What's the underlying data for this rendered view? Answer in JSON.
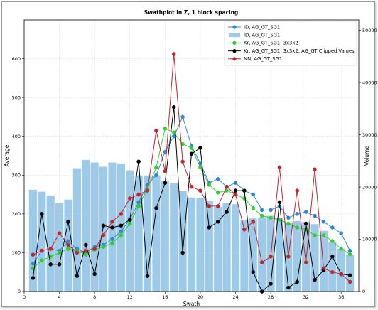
{
  "chart_data": {
    "type": "bar+line",
    "title": "Swathplot in Z, 1 block spacing",
    "xlabel": "Swath",
    "ylabel_left": "Average",
    "ylabel_right": "Volume",
    "xlim": [
      0,
      38
    ],
    "ylim_left": [
      0,
      700
    ],
    "ylim_right": [
      0,
      52000
    ],
    "xticks": [
      0,
      4,
      8,
      12,
      16,
      20,
      24,
      28,
      32,
      36
    ],
    "yticks_left": [
      0,
      100,
      200,
      300,
      400,
      500,
      600
    ],
    "yticks_right": [
      0,
      10000,
      20000,
      30000,
      40000,
      50000
    ],
    "grid": true,
    "legend_position": "top-right",
    "x": [
      1,
      2,
      3,
      4,
      5,
      6,
      7,
      8,
      9,
      10,
      11,
      12,
      13,
      14,
      15,
      16,
      17,
      18,
      19,
      20,
      21,
      22,
      23,
      24,
      25,
      26,
      27,
      28,
      29,
      30,
      31,
      32,
      33,
      34,
      35,
      36,
      37
    ],
    "volume": {
      "name": "ID, AG_GT_SG1",
      "color": "#9ecae9",
      "values": [
        19500,
        19100,
        18400,
        16900,
        17600,
        23600,
        25200,
        24700,
        23900,
        24700,
        24500,
        23200,
        22200,
        22200,
        22200,
        21100,
        20700,
        19200,
        18000,
        17900,
        17400,
        16200,
        16900,
        16700,
        13700,
        14000,
        14200,
        14500,
        14000,
        13200,
        13500,
        13300,
        12900,
        11600,
        9500,
        8200,
        7100
      ]
    },
    "series": [
      {
        "name": "ID, AG_GT_SG1",
        "color": "#2e86d1",
        "values": [
          72,
          105,
          110,
          105,
          130,
          110,
          100,
          115,
          120,
          135,
          155,
          185,
          230,
          275,
          300,
          360,
          400,
          450,
          375,
          330,
          280,
          290,
          270,
          280,
          260,
          250,
          210,
          210,
          220,
          190,
          200,
          205,
          195,
          180,
          165,
          150,
          105
        ]
      },
      {
        "name": "Kr, AG_GT_SG1: 3x3x2",
        "color": "#32cd32",
        "values": [
          60,
          80,
          90,
          100,
          110,
          105,
          95,
          108,
          115,
          125,
          145,
          175,
          220,
          265,
          320,
          420,
          410,
          380,
          370,
          320,
          275,
          255,
          260,
          250,
          240,
          215,
          195,
          190,
          185,
          175,
          165,
          160,
          145,
          145,
          130,
          110,
          96
        ]
      },
      {
        "name": "Kr, AG_GT_SG1: 3x3x2: AG_GT Clipped Values",
        "color": "#000000",
        "values": [
          35,
          200,
          70,
          70,
          180,
          40,
          120,
          45,
          170,
          165,
          170,
          185,
          335,
          40,
          215,
          280,
          475,
          100,
          355,
          370,
          165,
          180,
          205,
          260,
          260,
          50,
          0,
          20,
          230,
          10,
          25,
          175,
          30,
          55,
          90,
          45,
          42
        ]
      },
      {
        "name": "NN, AG_GT_SG1",
        "color": "#c0272d",
        "values": [
          95,
          105,
          110,
          150,
          120,
          100,
          105,
          110,
          145,
          180,
          200,
          240,
          250,
          260,
          415,
          310,
          612,
          335,
          270,
          260,
          220,
          220,
          270,
          250,
          160,
          180,
          75,
          90,
          320,
          90,
          260,
          75,
          315,
          60,
          50,
          45,
          25
        ]
      }
    ]
  }
}
